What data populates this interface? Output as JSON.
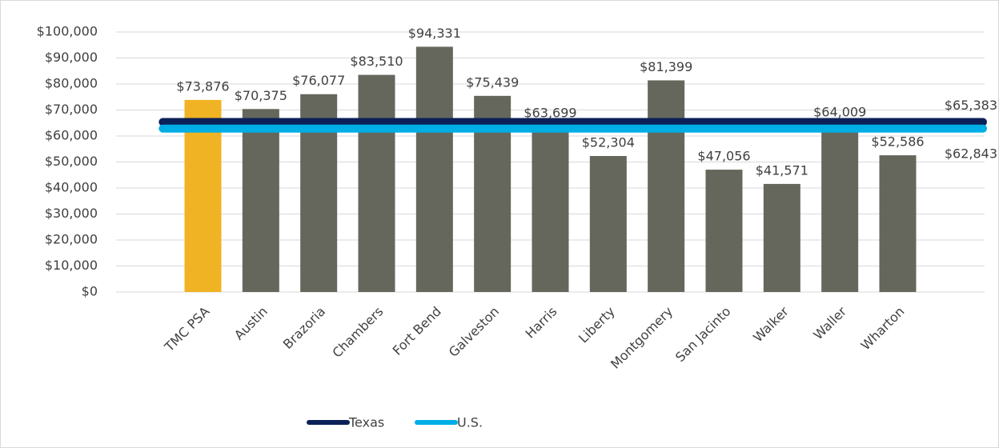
{
  "chart_data": {
    "type": "bar",
    "categories": [
      "TMC PSA",
      "Austin",
      "Brazoria",
      "Chambers",
      "Fort Bend",
      "Galveston",
      "Harris",
      "Liberty",
      "Montgomery",
      "San Jacinto",
      "Walker",
      "Waller",
      "Wharton"
    ],
    "values": [
      73876,
      70375,
      76077,
      83510,
      94331,
      75439,
      63699,
      52304,
      81399,
      47056,
      41571,
      64009,
      52586
    ],
    "value_labels": [
      "$73,876",
      "$70,375",
      "$76,077",
      "$83,510",
      "$94,331",
      "$75,439",
      "$63,699",
      "$52,304",
      "$81,399",
      "$47,056",
      "$41,571",
      "$64,009",
      "$52,586"
    ],
    "colors": [
      "#f0b323",
      "#65675c",
      "#65675c",
      "#65675c",
      "#65675c",
      "#65675c",
      "#65675c",
      "#65675c",
      "#65675c",
      "#65675c",
      "#65675c",
      "#65675c",
      "#65675c"
    ],
    "lines": [
      {
        "name": "Texas",
        "color": "#0c2157",
        "value": 65383,
        "value_label": "$65,383"
      },
      {
        "name": "U.S.",
        "color": "#00aee6",
        "value": 62843,
        "value_label": "$62,843"
      }
    ],
    "ylim": [
      0,
      100000
    ],
    "yticks": [
      {
        "value": 0,
        "label": "$0"
      },
      {
        "value": 10000,
        "label": "$10,000"
      },
      {
        "value": 20000,
        "label": "$20,000"
      },
      {
        "value": 30000,
        "label": "$30,000"
      },
      {
        "value": 40000,
        "label": "$40,000"
      },
      {
        "value": 50000,
        "label": "$50,000"
      },
      {
        "value": 60000,
        "label": "$60,000"
      },
      {
        "value": 70000,
        "label": "$70,000"
      },
      {
        "value": 80000,
        "label": "$80,000"
      },
      {
        "value": 90000,
        "label": "$90,000"
      },
      {
        "value": 100000,
        "label": "$100,000"
      }
    ],
    "grid": true,
    "legend": "bottom"
  }
}
